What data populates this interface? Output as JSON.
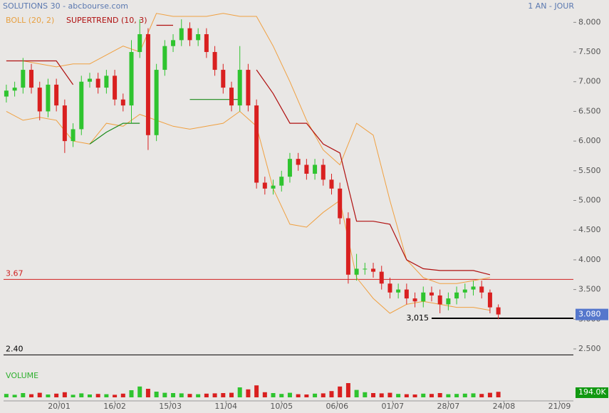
{
  "chart_data": {
    "type": "candlestick",
    "title": "SOLUTIONS 30 - abcbourse.com",
    "subtitle": "1 AN - JOUR",
    "x": [
      1,
      4,
      7,
      10,
      13,
      16,
      19,
      22,
      25,
      28,
      31,
      34,
      37,
      40,
      43,
      46,
      49,
      52,
      55,
      58,
      61,
      64,
      67,
      70,
      73,
      76,
      79,
      82,
      85,
      88,
      91,
      94,
      97,
      100,
      103,
      106,
      109,
      112,
      115,
      118,
      121,
      124,
      127,
      130,
      133,
      136,
      139,
      142,
      145,
      148,
      151,
      154,
      157,
      160,
      163,
      166,
      169,
      172,
      175,
      178
    ],
    "open": [
      6.75,
      6.85,
      6.9,
      7.2,
      6.9,
      6.5,
      6.95,
      6.6,
      6.0,
      6.2,
      7.0,
      7.05,
      6.9,
      7.1,
      6.7,
      6.6,
      7.5,
      7.8,
      6.1,
      7.2,
      7.6,
      7.7,
      7.9,
      7.7,
      7.8,
      7.5,
      7.2,
      6.9,
      6.6,
      7.2,
      6.6,
      5.3,
      5.2,
      5.25,
      5.4,
      5.7,
      5.6,
      5.45,
      5.6,
      5.35,
      5.2,
      4.7,
      3.75,
      3.85,
      3.85,
      3.8,
      3.6,
      3.45,
      3.5,
      3.35,
      3.3,
      3.45,
      3.4,
      3.25,
      3.35,
      3.45,
      3.5,
      3.55,
      3.45,
      3.2
    ],
    "high": [
      6.95,
      7.0,
      7.4,
      7.3,
      7.0,
      7.05,
      7.05,
      6.7,
      6.3,
      7.1,
      7.15,
      7.15,
      7.2,
      7.2,
      6.8,
      7.7,
      8.05,
      7.9,
      7.3,
      7.7,
      7.8,
      8.05,
      8.0,
      7.9,
      7.9,
      7.6,
      7.3,
      7.0,
      7.6,
      7.3,
      6.7,
      5.4,
      5.35,
      5.5,
      5.8,
      5.8,
      5.7,
      5.7,
      5.7,
      5.45,
      5.3,
      4.8,
      4.1,
      3.95,
      3.95,
      3.9,
      3.7,
      3.6,
      3.6,
      3.45,
      3.55,
      3.55,
      3.5,
      3.45,
      3.55,
      3.6,
      3.65,
      3.65,
      3.5,
      3.25
    ],
    "low": [
      6.65,
      6.75,
      6.8,
      6.8,
      6.35,
      6.4,
      6.5,
      5.8,
      5.9,
      6.1,
      6.9,
      6.8,
      6.8,
      6.6,
      6.5,
      6.3,
      7.4,
      5.85,
      6.0,
      7.1,
      7.5,
      7.6,
      7.6,
      7.6,
      7.4,
      7.1,
      6.8,
      6.5,
      6.5,
      6.5,
      5.2,
      5.1,
      5.1,
      5.15,
      5.3,
      5.5,
      5.35,
      5.35,
      5.25,
      5.1,
      4.6,
      3.6,
      3.65,
      3.75,
      3.7,
      3.5,
      3.35,
      3.35,
      3.25,
      3.2,
      3.2,
      3.3,
      3.1,
      3.15,
      3.25,
      3.35,
      3.4,
      3.35,
      3.1,
      3.0
    ],
    "close": [
      6.85,
      6.9,
      7.2,
      6.9,
      6.5,
      6.95,
      6.6,
      6.0,
      6.2,
      7.0,
      7.05,
      6.9,
      7.1,
      6.7,
      6.6,
      7.5,
      7.8,
      6.1,
      7.2,
      7.6,
      7.7,
      7.9,
      7.7,
      7.8,
      7.5,
      7.2,
      6.9,
      6.6,
      7.2,
      6.6,
      5.3,
      5.2,
      5.25,
      5.4,
      5.7,
      5.6,
      5.45,
      5.6,
      5.35,
      5.2,
      4.7,
      3.75,
      3.85,
      3.85,
      3.8,
      3.6,
      3.45,
      3.5,
      3.35,
      3.3,
      3.45,
      3.4,
      3.25,
      3.35,
      3.45,
      3.5,
      3.55,
      3.45,
      3.2,
      3.08
    ],
    "up_color": "#2fc42f",
    "down_color": "#d92020",
    "xlim": [
      0,
      205
    ],
    "xticks": [
      {
        "value": 20,
        "label": "20/01"
      },
      {
        "value": 40,
        "label": "16/02"
      },
      {
        "value": 60,
        "label": "15/03"
      },
      {
        "value": 80,
        "label": "11/04"
      },
      {
        "value": 100,
        "label": "10/05"
      },
      {
        "value": 120,
        "label": "06/06"
      },
      {
        "value": 140,
        "label": "01/07"
      },
      {
        "value": 160,
        "label": "28/07"
      },
      {
        "value": 180,
        "label": "24/08"
      },
      {
        "value": 200,
        "label": "21/09"
      }
    ],
    "ylim": [
      2.32,
      8.16
    ],
    "yticks": [
      {
        "value": 2.5,
        "label": "2.500"
      },
      {
        "value": 3.0,
        "label": "3.000"
      },
      {
        "value": 3.5,
        "label": "3.500"
      },
      {
        "value": 4.0,
        "label": "4.000"
      },
      {
        "value": 4.5,
        "label": "4.500"
      },
      {
        "value": 5.0,
        "label": "5.000"
      },
      {
        "value": 5.5,
        "label": "5.500"
      },
      {
        "value": 6.0,
        "label": "6.000"
      },
      {
        "value": 6.5,
        "label": "6.500"
      },
      {
        "value": 7.0,
        "label": "7.000"
      },
      {
        "value": 7.5,
        "label": "7.500"
      },
      {
        "value": 8.0,
        "label": "8.000"
      }
    ],
    "bollinger": {
      "name": "BOLL (20, 2)",
      "color": "#f0a040",
      "x": [
        1,
        7,
        13,
        19,
        25,
        31,
        37,
        43,
        49,
        55,
        61,
        67,
        73,
        79,
        85,
        91,
        97,
        103,
        109,
        115,
        121,
        127,
        133,
        139,
        145,
        151,
        157,
        163,
        169,
        175
      ],
      "upper": [
        7.35,
        7.35,
        7.3,
        7.25,
        7.3,
        7.3,
        7.45,
        7.6,
        7.5,
        8.15,
        8.1,
        8.1,
        8.1,
        8.15,
        8.1,
        8.1,
        7.6,
        7.0,
        6.35,
        5.85,
        5.6,
        6.3,
        6.1,
        5.0,
        4.0,
        3.7,
        3.6,
        3.6,
        3.65,
        3.7
      ],
      "lower": [
        6.5,
        6.35,
        6.4,
        6.35,
        6.0,
        5.95,
        6.3,
        6.25,
        6.45,
        6.35,
        6.25,
        6.2,
        6.25,
        6.3,
        6.5,
        6.25,
        5.2,
        4.6,
        4.55,
        4.8,
        5.0,
        3.7,
        3.35,
        3.1,
        3.25,
        3.3,
        3.25,
        3.2,
        3.2,
        3.15
      ]
    },
    "supertrend": {
      "name": "SUPERTREND (10, 3)",
      "above_color": "#b01010",
      "below_color": "#1a8a1a",
      "x": [
        1,
        7,
        13,
        19,
        25,
        31,
        37,
        43,
        49,
        55,
        61,
        67,
        73,
        79,
        85,
        91,
        97,
        103,
        109,
        115,
        121,
        127,
        133,
        139,
        145,
        151,
        157,
        163,
        169,
        175
      ],
      "above": [
        7.35,
        7.35,
        7.35,
        7.35,
        6.95,
        null,
        null,
        null,
        null,
        7.95,
        7.95,
        null,
        null,
        null,
        null,
        7.2,
        6.8,
        6.3,
        6.3,
        5.95,
        5.8,
        4.65,
        4.65,
        4.6,
        4.0,
        3.85,
        3.82,
        3.82,
        3.82,
        3.75
      ],
      "below": [
        null,
        null,
        null,
        null,
        null,
        5.95,
        6.15,
        6.3,
        6.3,
        null,
        null,
        6.7,
        6.7,
        6.7,
        6.7,
        null,
        null,
        null,
        null,
        null,
        null,
        null,
        null,
        null,
        null,
        null,
        null,
        null,
        null,
        null
      ]
    },
    "lines": [
      {
        "value": 3.67,
        "label": "3.67",
        "color": "#d02020"
      },
      {
        "value": 2.4,
        "label": "2.40",
        "color": "#000000"
      },
      {
        "value": 3.015,
        "label": "3,015",
        "color": "#000000"
      }
    ],
    "last_price": {
      "value": 3.08,
      "label": "3.080",
      "color": "#5577cc"
    },
    "volume": {
      "name": "VOLUME",
      "color": "#2fb02f",
      "ylim": [
        0,
        1200
      ],
      "values": [
        120,
        90,
        150,
        110,
        160,
        100,
        130,
        180,
        90,
        140,
        100,
        120,
        110,
        90,
        130,
        250,
        380,
        300,
        200,
        160,
        150,
        140,
        120,
        110,
        130,
        140,
        150,
        160,
        350,
        280,
        420,
        180,
        150,
        120,
        160,
        110,
        100,
        130,
        140,
        220,
        380,
        500,
        260,
        180,
        150,
        140,
        160,
        120,
        110,
        100,
        130,
        120,
        150,
        110,
        120,
        130,
        140,
        120,
        160,
        194
      ],
      "last": {
        "value": 194,
        "label": "194.0K",
        "color": "#119911"
      }
    }
  }
}
